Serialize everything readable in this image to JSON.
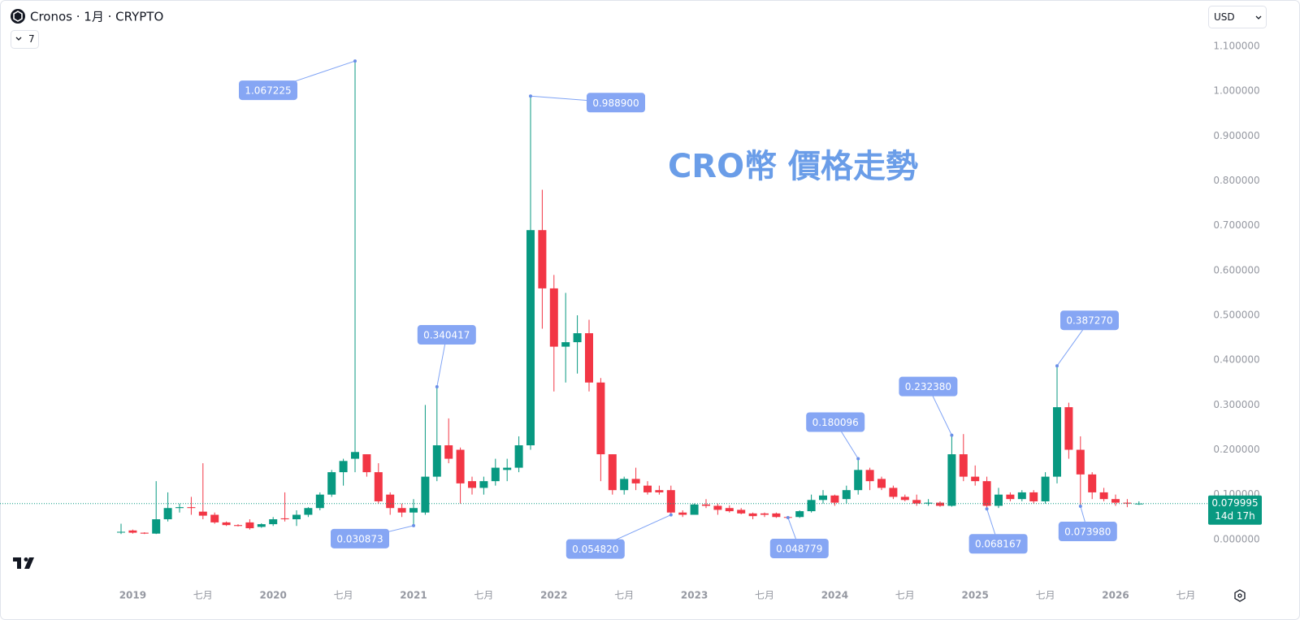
{
  "chart_data": {
    "type": "candlestick",
    "symbol": "Cronos · 1月 · CRYPTO",
    "indicator_count": "7",
    "currency": "USD",
    "title": "CRO幣 價格走勢",
    "countdown": "14d 17h",
    "up_color": "#089981",
    "down_color": "#f23645",
    "categories": [
      null,
      "2019",
      null,
      null,
      null,
      null,
      null,
      "七月",
      null,
      null,
      null,
      null,
      null,
      "2020",
      null,
      null,
      null,
      null,
      null,
      "七月",
      null,
      null,
      null,
      null,
      null,
      "2021",
      null,
      null,
      null,
      null,
      null,
      "七月",
      null,
      null,
      null,
      null,
      null,
      "2022",
      null,
      null,
      null,
      null,
      null,
      "七月",
      null,
      null,
      null,
      null,
      null,
      "2023",
      null,
      null,
      null,
      null,
      null,
      "七月",
      null,
      null,
      null,
      null,
      null,
      "2024",
      null,
      null,
      null,
      null,
      null,
      "七月",
      null,
      null,
      null,
      null,
      null,
      "2025",
      null,
      null,
      null,
      null,
      null,
      "七月",
      null,
      null,
      null,
      null,
      null,
      "2026",
      null,
      null,
      null,
      null,
      null,
      "七月"
    ],
    "open": [
      0.017,
      0.02,
      0.015,
      0.013,
      0.045,
      0.07,
      0.072,
      0.062,
      0.055,
      0.038,
      0.032,
      0.038,
      0.028,
      0.034,
      0.047,
      0.045,
      0.055,
      0.07,
      0.1,
      0.15,
      0.18,
      0.19,
      0.15,
      0.1,
      0.07,
      0.06,
      0.06,
      0.14,
      0.21,
      0.2,
      0.13,
      0.115,
      0.13,
      0.155,
      0.16,
      0.21,
      0.69,
      0.56,
      0.43,
      0.44,
      0.46,
      0.35,
      0.19,
      0.11,
      0.135,
      0.12,
      0.11,
      0.11,
      0.06,
      0.055,
      0.078,
      0.075,
      0.07,
      0.066,
      0.058,
      0.058,
      0.058,
      0.05,
      0.05,
      0.063,
      0.088,
      0.098,
      0.09,
      0.11,
      0.155,
      0.135,
      0.115,
      0.095,
      0.088,
      0.08,
      0.082,
      0.075,
      0.19,
      0.14,
      0.13,
      0.075,
      0.1,
      0.09,
      0.105,
      0.085,
      0.14,
      0.295,
      0.2,
      0.145,
      0.105,
      0.09,
      0.082,
      0.0795,
      null,
      null,
      null,
      null
    ],
    "high": [
      0.035,
      0.022,
      0.016,
      0.13,
      0.105,
      0.08,
      0.095,
      0.17,
      0.06,
      0.04,
      0.034,
      0.045,
      0.036,
      0.05,
      0.105,
      0.065,
      0.072,
      0.105,
      0.155,
      0.18,
      1.067225,
      0.19,
      0.17,
      0.105,
      0.08,
      0.09,
      0.3,
      0.340417,
      0.27,
      0.205,
      0.14,
      0.14,
      0.18,
      0.18,
      0.23,
      0.9889,
      0.78,
      0.59,
      0.55,
      0.5,
      0.49,
      0.36,
      0.19,
      0.14,
      0.16,
      0.13,
      0.12,
      0.12,
      0.065,
      0.08,
      0.09,
      0.08,
      0.076,
      0.07,
      0.06,
      0.06,
      0.06,
      0.052,
      0.065,
      0.1,
      0.11,
      0.1,
      0.12,
      0.180096,
      0.16,
      0.14,
      0.12,
      0.1,
      0.1,
      0.09,
      0.085,
      0.23238,
      0.235,
      0.165,
      0.14,
      0.115,
      0.105,
      0.11,
      0.11,
      0.15,
      0.38727,
      0.305,
      0.23,
      0.15,
      0.115,
      0.1,
      0.09,
      0.085,
      null,
      null,
      null,
      null
    ],
    "low": [
      0.012,
      0.013,
      0.012,
      0.012,
      0.04,
      0.06,
      0.055,
      0.045,
      0.035,
      0.03,
      0.029,
      0.022,
      0.026,
      0.03,
      0.04,
      0.03,
      0.05,
      0.065,
      0.095,
      0.12,
      0.15,
      0.14,
      0.08,
      0.055,
      0.05,
      0.030873,
      0.055,
      0.13,
      0.17,
      0.08,
      0.1,
      0.1,
      0.12,
      0.13,
      0.15,
      0.2,
      0.47,
      0.33,
      0.35,
      0.37,
      0.33,
      0.13,
      0.1,
      0.1,
      0.11,
      0.1,
      0.1,
      0.05482,
      0.05,
      0.055,
      0.07,
      0.055,
      0.06,
      0.056,
      0.045,
      0.05,
      0.048,
      0.048779,
      0.048,
      0.06,
      0.08,
      0.075,
      0.08,
      0.1,
      0.11,
      0.11,
      0.09,
      0.085,
      0.075,
      0.075,
      0.073,
      0.073,
      0.13,
      0.12,
      0.068167,
      0.07,
      0.085,
      0.085,
      0.08,
      0.08,
      0.125,
      0.18,
      0.07398,
      0.09,
      0.085,
      0.075,
      0.072,
      0.077,
      null,
      null,
      null,
      null
    ],
    "close": [
      0.017,
      0.015,
      0.013,
      0.045,
      0.07,
      0.072,
      0.07,
      0.053,
      0.038,
      0.032,
      0.03,
      0.025,
      0.034,
      0.045,
      0.045,
      0.055,
      0.07,
      0.1,
      0.15,
      0.175,
      0.195,
      0.15,
      0.085,
      0.07,
      0.06,
      0.07,
      0.14,
      0.21,
      0.18,
      0.125,
      0.115,
      0.13,
      0.16,
      0.16,
      0.21,
      0.69,
      0.56,
      0.43,
      0.44,
      0.46,
      0.35,
      0.19,
      0.11,
      0.135,
      0.125,
      0.105,
      0.105,
      0.06,
      0.055,
      0.078,
      0.075,
      0.066,
      0.063,
      0.058,
      0.052,
      0.055,
      0.05,
      0.049,
      0.063,
      0.088,
      0.098,
      0.082,
      0.11,
      0.155,
      0.13,
      0.115,
      0.095,
      0.088,
      0.08,
      0.082,
      0.075,
      0.19,
      0.14,
      0.13,
      0.075,
      0.1,
      0.09,
      0.105,
      0.085,
      0.14,
      0.295,
      0.2,
      0.145,
      0.105,
      0.09,
      0.082,
      0.08,
      0.079995,
      null,
      null,
      null,
      null
    ],
    "annotations": [
      {
        "label": "1.067225",
        "value": 1.067225
      },
      {
        "label": "0.030873",
        "value": 0.030873
      },
      {
        "label": "0.340417",
        "value": 0.340417
      },
      {
        "label": "0.988900",
        "value": 0.9889
      },
      {
        "label": "0.054820",
        "value": 0.05482
      },
      {
        "label": "0.048779",
        "value": 0.048779
      },
      {
        "label": "0.180096",
        "value": 0.180096
      },
      {
        "label": "0.232380",
        "value": 0.23238
      },
      {
        "label": "0.068167",
        "value": 0.068167
      },
      {
        "label": "0.387270",
        "value": 0.38727
      },
      {
        "label": "0.073980",
        "value": 0.07398
      }
    ],
    "ylim": [
      -0.09,
      1.2
    ],
    "yticks": [
      {
        "value": 0,
        "label": "0.000000"
      },
      {
        "value": 0.1,
        "label": "0.100000"
      },
      {
        "value": 0.2,
        "label": "0.200000"
      },
      {
        "value": 0.3,
        "label": "0.300000"
      },
      {
        "value": 0.4,
        "label": "0.400000"
      },
      {
        "value": 0.5,
        "label": "0.500000"
      },
      {
        "value": 0.6,
        "label": "0.600000"
      },
      {
        "value": 0.7,
        "label": "0.700000"
      },
      {
        "value": 0.8,
        "label": "0.800000"
      },
      {
        "value": 0.9,
        "label": "0.900000"
      },
      {
        "value": 1,
        "label": "1.000000"
      },
      {
        "value": 1.1,
        "label": "1.100000"
      }
    ],
    "grid": false
  }
}
